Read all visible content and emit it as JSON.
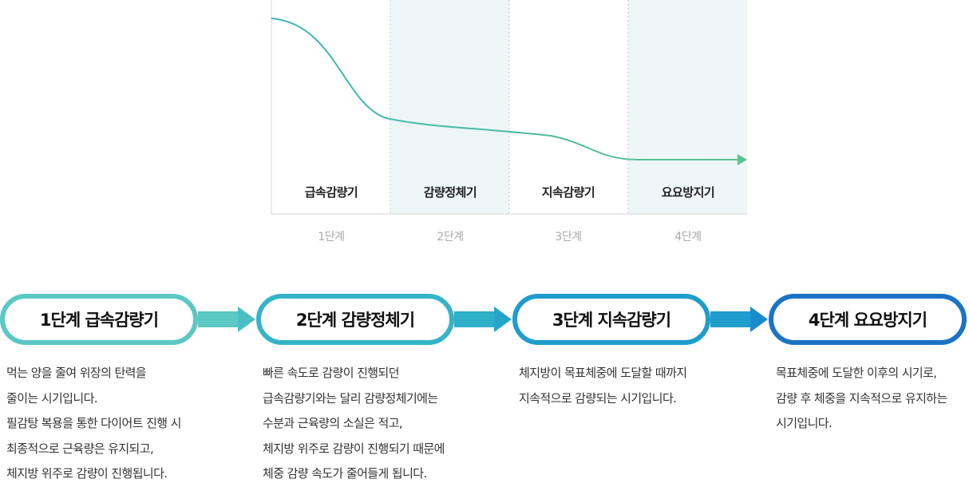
{
  "chart": {
    "phases": [
      {
        "label": "급속감량기",
        "step": "1단계",
        "shaded": false
      },
      {
        "label": "감량정체기",
        "step": "2단계",
        "shaded": true
      },
      {
        "label": "지속감량기",
        "step": "3단계",
        "shaded": false
      },
      {
        "label": "요요방지기",
        "step": "4단계",
        "shaded": true
      }
    ],
    "colors": {
      "shade": "#eef6f8",
      "curve_start": "#3bb7b4",
      "curve_end": "#5cc28f",
      "divider": "#b7c8cc",
      "axis": "#d4d4d4"
    }
  },
  "steps": [
    {
      "title": "1단계 급속감량기",
      "color": "#5bc8c4",
      "lines": [
        "먹는 양을 줄여 위장의 탄력을",
        "줄이는 시기입니다.",
        "필감탕 복용을 통한 다이어트 진행 시",
        "최종적으로 근육량은 유지되고,",
        "체지방 위주로 감량이 진행됩니다."
      ]
    },
    {
      "title": "2단계 감량정체기",
      "color": "#35b4c7",
      "lines": [
        "빠른 속도로 감량이 진행되던",
        "급속감량기와는 달리 감량정체기에는",
        "수분과 근육량의 소실은 적고,",
        "체지방 위주로 감량이 진행되기 때문에",
        "체중 감량 속도가 줄어들게 됩니다."
      ]
    },
    {
      "title": "3단계 지속감량기",
      "color": "#1f9ccc",
      "lines": [
        "체지방이 목표체중에 도달할 때까지",
        "지속적으로 감량되는 시기입니다."
      ]
    },
    {
      "title": "4단계 요요방지기",
      "color": "#1b73c4",
      "lines": [
        "목표체중에 도달한 이후의 시기로,",
        "감량 후 체중을 지속적으로 유지하는",
        "시기입니다."
      ]
    }
  ],
  "arrow_colors": [
    "#5bc8c4",
    "#2db0c8",
    "#1f9ccc"
  ]
}
